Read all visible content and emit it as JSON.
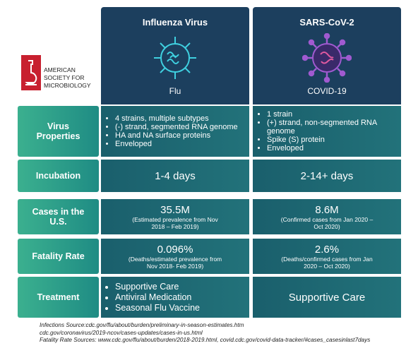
{
  "logo": {
    "lines": [
      "AMERICAN",
      "SOCIETY FOR",
      "MICROBIOLOGY"
    ]
  },
  "columns": [
    {
      "title": "Influenza Virus",
      "label": "Flu"
    },
    {
      "title": "SARS-CoV-2",
      "label": "COVID-19"
    }
  ],
  "rows": [
    {
      "label": "Virus Properties",
      "cells": [
        {
          "bullets": [
            "4 strains, multiple subtypes",
            "(-) strand, segmented RNA genome",
            "HA and NA surface proteins",
            "Enveloped"
          ]
        },
        {
          "bullets": [
            "1 strain",
            "(+) strand, non-segmented RNA genome",
            "Spike (S) protein",
            "Enveloped"
          ]
        }
      ]
    },
    {
      "label": "Incubation",
      "cells": [
        {
          "main": "1-4 days"
        },
        {
          "main": "2-14+ days"
        }
      ]
    },
    {
      "label": "Cases in the U.S.",
      "cells": [
        {
          "main": "35.5M",
          "note": "(Estimated prevalence from Nov 2018 – Feb 2019)"
        },
        {
          "main": "8.6M",
          "note": "(Confirmed cases from Jan 2020 – Oct 2020)"
        }
      ]
    },
    {
      "label": "Fatality Rate",
      "cells": [
        {
          "main": "0.096%",
          "note": "(Deaths/estimated prevalence from Nov 2018- Feb 2019)"
        },
        {
          "main": "2.6%",
          "note": "(Deaths/confirmed cases from Jan 2020 – Oct 2020)"
        }
      ]
    },
    {
      "label": "Treatment",
      "cells": [
        {
          "bullets": [
            "Supportive Care",
            "Antiviral Medication",
            "Seasonal Flu Vaccine"
          ]
        },
        {
          "main": "Supportive Care"
        }
      ]
    }
  ],
  "footnotes": [
    "Infections Source:cdc.gov/flu/about/burden/preliminary-in-season-estimates.htm",
    "cdc.gov/coronavirus/2019-ncov/cases-updates/cases-in-us.html",
    "Fatality Rate Sources: www.cdc.gov/flu/about/burden/2018-2019.html, covid.cdc.gov/covid-data-tracker/#cases_casesinlast7days"
  ]
}
